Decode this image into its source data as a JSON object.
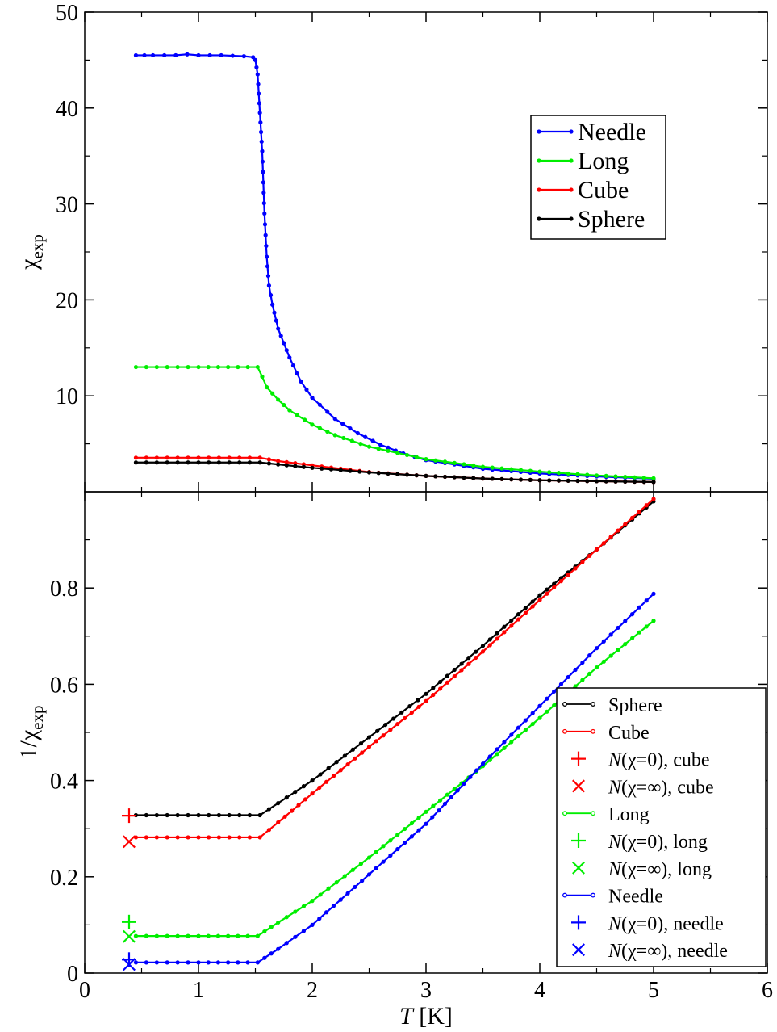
{
  "chart_data": [
    {
      "type": "line",
      "panel": "top",
      "xlabel_italic": "T",
      "xlabel_unit": " [K]",
      "ylabel_main": "χ",
      "ylabel_sub": "exp",
      "xlim": [
        0,
        6
      ],
      "ylim": [
        0,
        50
      ],
      "x_ticks": [
        "0",
        "1",
        "2",
        "3",
        "4",
        "5",
        "6"
      ],
      "y_ticks": [
        "10",
        "20",
        "30",
        "40",
        "50"
      ],
      "legend_position": "top-right",
      "legend": [
        "Needle",
        "Long",
        "Cube",
        "Sphere"
      ],
      "series": [
        {
          "name": "Needle",
          "color": "#0000ff",
          "x": [
            0.45,
            0.6,
            0.8,
            0.9,
            1.0,
            1.2,
            1.4,
            1.48,
            1.5,
            1.52,
            1.54,
            1.56,
            1.58,
            1.6,
            1.62,
            1.65,
            1.7,
            1.75,
            1.8,
            1.9,
            2.0,
            2.2,
            2.4,
            2.6,
            2.8,
            3.0,
            3.5,
            4.0,
            4.5,
            5.0
          ],
          "y": [
            45.5,
            45.5,
            45.5,
            45.6,
            45.5,
            45.5,
            45.4,
            45.3,
            45.0,
            43.5,
            39.5,
            35.5,
            29.0,
            24.5,
            21.5,
            19.5,
            17.0,
            15.5,
            14.0,
            11.5,
            9.8,
            7.6,
            6.1,
            4.9,
            4.0,
            3.3,
            2.4,
            1.9,
            1.6,
            1.35
          ]
        },
        {
          "name": "Long",
          "color": "#00ee00",
          "x": [
            0.45,
            1.0,
            1.52,
            1.56,
            1.6,
            1.7,
            1.8,
            2.0,
            2.2,
            2.5,
            3.0,
            3.5,
            4.0,
            4.5,
            5.0
          ],
          "y": [
            13.0,
            13.0,
            13.0,
            12.0,
            10.9,
            9.6,
            8.5,
            7.0,
            5.9,
            4.7,
            3.4,
            2.6,
            2.1,
            1.7,
            1.4
          ]
        },
        {
          "name": "Cube",
          "color": "#ff0000",
          "x": [
            0.45,
            1.0,
            1.54,
            1.7,
            2.0,
            2.5,
            3.0,
            3.5,
            4.0,
            4.5,
            5.0
          ],
          "y": [
            3.55,
            3.55,
            3.55,
            3.2,
            2.75,
            2.05,
            1.65,
            1.38,
            1.2,
            1.1,
            1.02
          ]
        },
        {
          "name": "Sphere",
          "color": "#000000",
          "x": [
            0.45,
            1.0,
            1.54,
            1.7,
            2.0,
            2.5,
            3.0,
            3.5,
            4.0,
            4.5,
            5.0
          ],
          "y": [
            3.05,
            3.05,
            3.05,
            2.85,
            2.5,
            2.02,
            1.65,
            1.38,
            1.2,
            1.1,
            1.02
          ]
        }
      ]
    },
    {
      "type": "line",
      "panel": "bottom",
      "xlabel_italic": "T",
      "xlabel_unit": " [K]",
      "ylabel_main": "1/χ",
      "ylabel_sub": "exp",
      "xlim": [
        0,
        6
      ],
      "ylim": [
        0,
        1.0
      ],
      "x_ticks": [
        "0",
        "1",
        "2",
        "3",
        "4",
        "5",
        "6"
      ],
      "y_ticks": [
        "0",
        "0.2",
        "0.4",
        "0.6",
        "0.8"
      ],
      "legend_position": "bottom-right",
      "legend": [
        {
          "label_italic": "",
          "label": "Sphere",
          "kind": "line",
          "color": "#000000"
        },
        {
          "label_italic": "",
          "label": "Cube",
          "kind": "line",
          "color": "#ff0000"
        },
        {
          "label_italic": "N",
          "label": "(χ=0), cube",
          "kind": "plus",
          "color": "#ff0000"
        },
        {
          "label_italic": "N",
          "label": "(χ=∞), cube",
          "kind": "cross",
          "color": "#ff0000"
        },
        {
          "label_italic": "",
          "label": "Long",
          "kind": "line",
          "color": "#00ee00"
        },
        {
          "label_italic": "N",
          "label": "(χ=0), long",
          "kind": "plus",
          "color": "#00ee00"
        },
        {
          "label_italic": "N",
          "label": "(χ=∞), long",
          "kind": "cross",
          "color": "#00ee00"
        },
        {
          "label_italic": "",
          "label": "Needle",
          "kind": "line",
          "color": "#0000ff"
        },
        {
          "label_italic": "N",
          "label": "(χ=0), needle",
          "kind": "plus",
          "color": "#0000ff"
        },
        {
          "label_italic": "N",
          "label": "(χ=∞), needle",
          "kind": "cross",
          "color": "#0000ff"
        }
      ],
      "series": [
        {
          "name": "Sphere",
          "color": "#000000",
          "x": [
            0.45,
            1.0,
            1.54,
            1.7,
            2.0,
            2.5,
            3.0,
            3.5,
            4.0,
            4.5,
            5.0
          ],
          "y": [
            0.328,
            0.328,
            0.328,
            0.353,
            0.4,
            0.49,
            0.58,
            0.68,
            0.785,
            0.88,
            0.98
          ]
        },
        {
          "name": "Cube",
          "color": "#ff0000",
          "x": [
            0.45,
            1.0,
            1.54,
            1.7,
            2.0,
            2.5,
            3.0,
            3.5,
            4.0,
            4.5,
            5.0
          ],
          "y": [
            0.282,
            0.282,
            0.282,
            0.313,
            0.373,
            0.47,
            0.565,
            0.668,
            0.775,
            0.88,
            0.985
          ]
        },
        {
          "name": "Long",
          "color": "#00ee00",
          "x": [
            0.45,
            1.0,
            1.52,
            1.7,
            2.0,
            2.5,
            3.0,
            3.5,
            4.0,
            4.5,
            5.0
          ],
          "y": [
            0.077,
            0.077,
            0.077,
            0.105,
            0.15,
            0.24,
            0.335,
            0.43,
            0.53,
            0.635,
            0.732
          ]
        },
        {
          "name": "Needle",
          "color": "#0000ff",
          "x": [
            0.45,
            1.0,
            1.52,
            1.7,
            2.0,
            2.5,
            3.0,
            3.5,
            4.0,
            4.5,
            5.0
          ],
          "y": [
            0.022,
            0.022,
            0.022,
            0.05,
            0.1,
            0.205,
            0.31,
            0.435,
            0.555,
            0.675,
            0.788
          ]
        }
      ],
      "markers": [
        {
          "kind": "plus",
          "color": "#ff0000",
          "x": 0.39,
          "y": 0.327
        },
        {
          "kind": "cross",
          "color": "#ff0000",
          "x": 0.39,
          "y": 0.273
        },
        {
          "kind": "plus",
          "color": "#00ee00",
          "x": 0.39,
          "y": 0.106
        },
        {
          "kind": "cross",
          "color": "#00ee00",
          "x": 0.39,
          "y": 0.076
        },
        {
          "kind": "plus",
          "color": "#0000ff",
          "x": 0.39,
          "y": 0.028
        },
        {
          "kind": "cross",
          "color": "#0000ff",
          "x": 0.39,
          "y": 0.018
        }
      ]
    }
  ]
}
